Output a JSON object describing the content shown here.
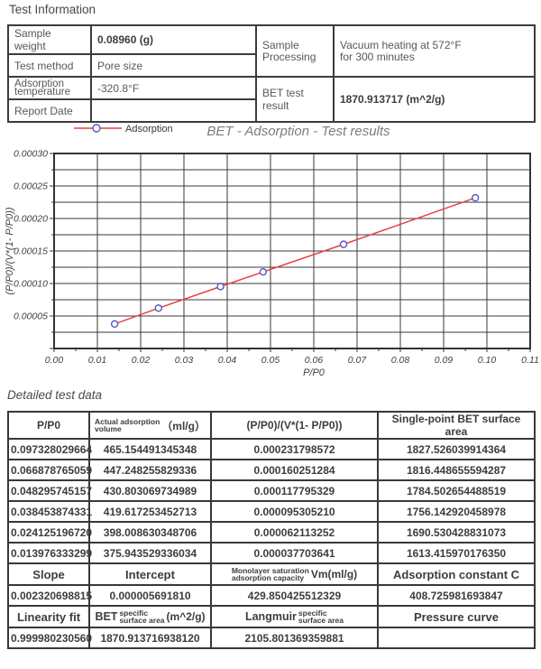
{
  "report": {
    "section1_title": "Test Information",
    "section2_title": "Detailed test data"
  },
  "info_table": {
    "sample_weight_label": "Sample weight",
    "sample_weight_value": "0.08960 (g)",
    "test_method_label": "Test method",
    "test_method_value": "Pore size",
    "adsorption_temp_label_line1": "Adsorption",
    "adsorption_temp_label_line2": "temperature",
    "adsorption_temp_value": "-320.8°F",
    "report_date_label": "Report Date",
    "report_date_value": "",
    "processing_label_line1": "Sample",
    "processing_label_line2": "Processing",
    "processing_value_line1": "Vacuum heating at 572°F",
    "processing_value_line2": "for 300 minutes",
    "bet_result_label": "BET test result",
    "bet_result_value": "1870.913717 (m^2/g)"
  },
  "chart_data": {
    "type": "line",
    "title": "BET - Adsorption - Test results",
    "legend": {
      "label": "Adsorption",
      "position": "top-left"
    },
    "xlabel": "P/P0",
    "ylabel": "(P/P0)/(V*(1- P/P0))",
    "xlim": [
      0,
      0.11
    ],
    "ylim": [
      0,
      0.0003
    ],
    "x_tick_labels": [
      "0.00",
      "0.01",
      "0.02",
      "0.03",
      "0.04",
      "0.05",
      "0.06",
      "0.07",
      "0.08",
      "0.09",
      "0.10",
      "0.11"
    ],
    "y_tick_labels": [
      "0.00005",
      "0.00010",
      "0.00015",
      "0.00020",
      "0.00025",
      "0.00030"
    ],
    "grid": true,
    "line_color": "#e84040",
    "marker_color": "#5853c8",
    "grid_color": "#3a3a3a",
    "series": [
      {
        "name": "Adsorption",
        "x": [
          0.013976333299,
          0.02412519672,
          0.038453874331,
          0.048295745157,
          0.066878765059,
          0.097328029664
        ],
        "y": [
          3.7703641e-05,
          6.2113252e-05,
          9.530521e-05,
          0.000117795329,
          0.000160251284,
          0.000231798572
        ]
      }
    ]
  },
  "detail_table": {
    "header": {
      "c1": "P/P0",
      "c2_line1": "Actual adsorption",
      "c2_line2": "volume",
      "c2_unit": "（ml/g）",
      "c3": "(P/P0)/(V*(1- P/P0))",
      "c4": "Single-point BET surface area"
    },
    "rows": [
      [
        "0.097328029664",
        "465.154491345348",
        "0.000231798572",
        "1827.526039914364"
      ],
      [
        "0.066878765059",
        "447.248255829336",
        "0.000160251284",
        "1816.448655594287"
      ],
      [
        "0.048295745157",
        "430.803069734989",
        "0.000117795329",
        "1784.502654488519"
      ],
      [
        "0.038453874331",
        "419.617253452713",
        "0.000095305210",
        "1756.142920458978"
      ],
      [
        "0.024125196720",
        "398.008630348706",
        "0.000062113252",
        "1690.530428831073"
      ],
      [
        "0.013976333299",
        "375.943529336034",
        "0.000037703641",
        "1613.415970176350"
      ]
    ],
    "slope_header": {
      "c1": "Slope",
      "c2": "Intercept",
      "c3_line1": "Monolayer saturation",
      "c3_line2": "adsorption capacity",
      "c3_unit": "Vm(ml/g)",
      "c4": "Adsorption constant C"
    },
    "slope_values": [
      "0.002320698815",
      "0.000005691810",
      "429.850425512329",
      "408.725981693847"
    ],
    "fit_header": {
      "c1": "Linearity fit",
      "c2_prefix": "BET",
      "c2_line1": "specific",
      "c2_line2": "surface area",
      "c2_unit": "(m^2/g)",
      "c3_prefix": "Langmuir",
      "c3_line1": "specific",
      "c3_line2": "surface area",
      "c4": "Pressure curve"
    },
    "fit_values": [
      "0.999980230560",
      "1870.913716938120",
      "2105.801369359881",
      ""
    ]
  }
}
